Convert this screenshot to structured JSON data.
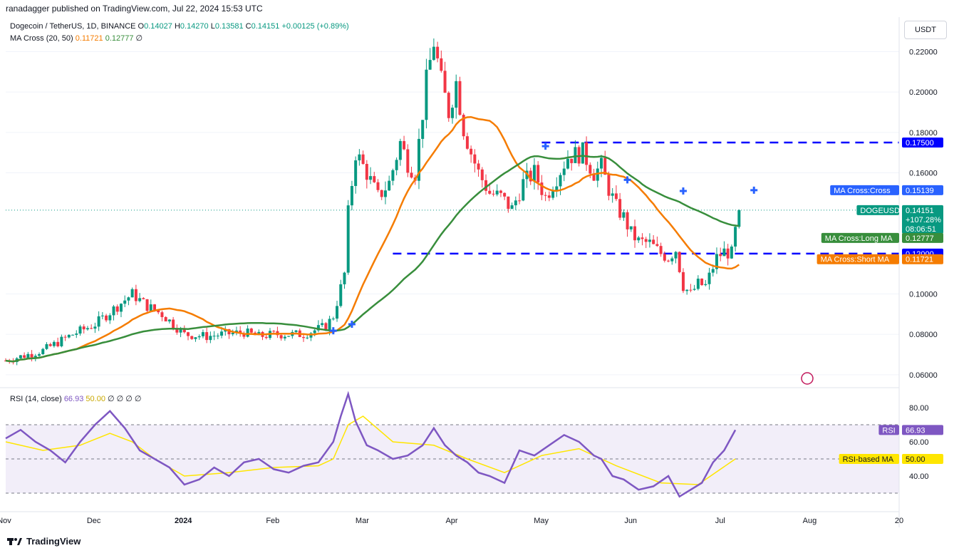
{
  "header": {
    "publisher": "ranadagger published on TradingView.com, Jul 22, 2024 15:53 UTC",
    "symbol": "Dogecoin / TetherUS, 1D, BINANCE",
    "o_label": "O",
    "o": "0.14027",
    "h_label": "H",
    "h": "0.14270",
    "l_label": "L",
    "l": "0.13581",
    "c_label": "C",
    "c": "0.14151",
    "change": "+0.00125 (+0.89%)",
    "ma_title": "MA Cross (20, 50)",
    "ma_short": "0.11721",
    "ma_long": "0.12777",
    "ma_extra": "∅",
    "currency": "USDT"
  },
  "rsi_legend": {
    "title": "RSI (14, close)",
    "rsi": "66.93",
    "ma": "50.00",
    "extras": "∅ ∅ ∅ ∅"
  },
  "footer": {
    "logo_text": "TradingView"
  },
  "colors": {
    "up": "#089981",
    "down": "#f23645",
    "short_ma": "#f57c00",
    "long_ma": "#388e3c",
    "level": "#0000ff",
    "rsi": "#7e57c2",
    "rsi_ma": "#ffe600"
  },
  "chart_data": {
    "type": "candlestick",
    "x_ticks": [
      "Nov",
      "Dec",
      "2024",
      "Feb",
      "Mar",
      "Apr",
      "May",
      "Jun",
      "Jul",
      "Aug",
      "20"
    ],
    "y_ticks": [
      "0.22000",
      "0.20000",
      "0.18000",
      "0.16000",
      "0.10000",
      "0.08000",
      "0.06000"
    ],
    "ylim": [
      0.055,
      0.235
    ],
    "horizontal_levels": [
      0.175,
      0.12
    ],
    "price_labels": [
      {
        "text": "0.17500",
        "value": 0.175,
        "color": "#0000ff"
      },
      {
        "text": "MA Cross:Cross",
        "value": 0.15139,
        "color": "#2962ff",
        "is_name": true
      },
      {
        "text": "0.15139",
        "value": 0.15139,
        "color": "#2962ff"
      },
      {
        "text": "DOGEUSDT",
        "value": 0.14151,
        "color": "#089981",
        "is_name": true
      },
      {
        "text": "0.14151",
        "value": 0.14151,
        "color": "#089981",
        "extra": [
          "+107.28%",
          "08:06:51"
        ]
      },
      {
        "text": "MA Cross:Long MA",
        "value": 0.12777,
        "color": "#388e3c",
        "is_name": true
      },
      {
        "text": "0.12777",
        "value": 0.12777,
        "color": "#388e3c"
      },
      {
        "text": "0.12000",
        "value": 0.12,
        "color": "#0000ff"
      },
      {
        "text": "MA Cross:Short MA",
        "value": 0.11721,
        "color": "#f57c00",
        "is_name": true
      },
      {
        "text": "0.11721",
        "value": 0.11721,
        "color": "#f57c00"
      }
    ],
    "price_path": [
      [
        0,
        0.067
      ],
      [
        10,
        0.072
      ],
      [
        18,
        0.08
      ],
      [
        24,
        0.085
      ],
      [
        30,
        0.094
      ],
      [
        34,
        0.1
      ],
      [
        38,
        0.094
      ],
      [
        42,
        0.09
      ],
      [
        48,
        0.08
      ],
      [
        54,
        0.079
      ],
      [
        58,
        0.08
      ],
      [
        64,
        0.081
      ],
      [
        68,
        0.079
      ],
      [
        72,
        0.08
      ],
      [
        80,
        0.08
      ],
      [
        86,
        0.084
      ],
      [
        88,
        0.089
      ],
      [
        91,
        0.11
      ],
      [
        92,
        0.14
      ],
      [
        94,
        0.17
      ],
      [
        97,
        0.16
      ],
      [
        100,
        0.148
      ],
      [
        103,
        0.155
      ],
      [
        106,
        0.175
      ],
      [
        108,
        0.165
      ],
      [
        110,
        0.16
      ],
      [
        113,
        0.205
      ],
      [
        115,
        0.225
      ],
      [
        117,
        0.205
      ],
      [
        119,
        0.19
      ],
      [
        121,
        0.205
      ],
      [
        123,
        0.182
      ],
      [
        125,
        0.17
      ],
      [
        127,
        0.16
      ],
      [
        130,
        0.15
      ],
      [
        133,
        0.148
      ],
      [
        136,
        0.142
      ],
      [
        139,
        0.155
      ],
      [
        142,
        0.16
      ],
      [
        145,
        0.148
      ],
      [
        148,
        0.158
      ],
      [
        151,
        0.168
      ],
      [
        155,
        0.17
      ],
      [
        158,
        0.16
      ],
      [
        160,
        0.163
      ],
      [
        162,
        0.152
      ],
      [
        164,
        0.143
      ],
      [
        166,
        0.138
      ],
      [
        168,
        0.13
      ],
      [
        170,
        0.126
      ],
      [
        173,
        0.125
      ],
      [
        176,
        0.12
      ],
      [
        178,
        0.118
      ],
      [
        180,
        0.122
      ],
      [
        182,
        0.104
      ],
      [
        184,
        0.1
      ],
      [
        186,
        0.105
      ],
      [
        188,
        0.104
      ],
      [
        191,
        0.118
      ],
      [
        193,
        0.121
      ],
      [
        195,
        0.12
      ],
      [
        196,
        0.131
      ],
      [
        197,
        0.1415
      ]
    ],
    "cross_markers": [
      [
        88,
        0.0818
      ],
      [
        93,
        0.085
      ],
      [
        145,
        0.1732
      ],
      [
        167,
        0.1565
      ],
      [
        182,
        0.151
      ],
      [
        201,
        0.1514
      ]
    ],
    "rsi": {
      "ylim": [
        20,
        90
      ],
      "y_ticks": [
        "80.00",
        "60.00",
        "40.00"
      ],
      "band": [
        30,
        70
      ],
      "midline": 50,
      "labels": [
        {
          "text": "RSI",
          "value": 66.93,
          "color": "#7e57c2",
          "is_name": true
        },
        {
          "text": "66.93",
          "value": 66.93,
          "color": "#7e57c2"
        },
        {
          "text": "RSI-based MA",
          "value": 50,
          "color": "#ffe600",
          "is_name": true
        },
        {
          "text": "50.00",
          "value": 50,
          "color": "#ffe600"
        }
      ],
      "rsi_path": [
        [
          0,
          62
        ],
        [
          4,
          67
        ],
        [
          8,
          60
        ],
        [
          12,
          55
        ],
        [
          16,
          48
        ],
        [
          20,
          60
        ],
        [
          24,
          70
        ],
        [
          28,
          78
        ],
        [
          32,
          68
        ],
        [
          36,
          55
        ],
        [
          40,
          50
        ],
        [
          44,
          45
        ],
        [
          48,
          35
        ],
        [
          52,
          38
        ],
        [
          56,
          45
        ],
        [
          60,
          40
        ],
        [
          64,
          48
        ],
        [
          68,
          50
        ],
        [
          72,
          44
        ],
        [
          76,
          42
        ],
        [
          80,
          46
        ],
        [
          84,
          48
        ],
        [
          88,
          60
        ],
        [
          90,
          75
        ],
        [
          92,
          88
        ],
        [
          94,
          72
        ],
        [
          97,
          58
        ],
        [
          100,
          55
        ],
        [
          104,
          50
        ],
        [
          108,
          52
        ],
        [
          112,
          58
        ],
        [
          115,
          68
        ],
        [
          118,
          58
        ],
        [
          121,
          52
        ],
        [
          124,
          48
        ],
        [
          127,
          42
        ],
        [
          130,
          40
        ],
        [
          134,
          36
        ],
        [
          138,
          55
        ],
        [
          142,
          52
        ],
        [
          146,
          58
        ],
        [
          150,
          64
        ],
        [
          154,
          60
        ],
        [
          158,
          52
        ],
        [
          160,
          50
        ],
        [
          163,
          40
        ],
        [
          166,
          38
        ],
        [
          170,
          32
        ],
        [
          174,
          34
        ],
        [
          178,
          40
        ],
        [
          181,
          28
        ],
        [
          184,
          32
        ],
        [
          187,
          36
        ],
        [
          190,
          48
        ],
        [
          193,
          55
        ],
        [
          196,
          66.93
        ]
      ],
      "ma_path": [
        [
          0,
          60
        ],
        [
          10,
          55
        ],
        [
          20,
          58
        ],
        [
          28,
          65
        ],
        [
          34,
          60
        ],
        [
          40,
          50
        ],
        [
          48,
          40
        ],
        [
          60,
          42
        ],
        [
          72,
          45
        ],
        [
          84,
          46
        ],
        [
          88,
          50
        ],
        [
          92,
          70
        ],
        [
          96,
          75
        ],
        [
          104,
          60
        ],
        [
          115,
          58
        ],
        [
          124,
          50
        ],
        [
          134,
          42
        ],
        [
          144,
          52
        ],
        [
          154,
          56
        ],
        [
          164,
          46
        ],
        [
          176,
          36
        ],
        [
          186,
          35
        ],
        [
          196,
          50
        ]
      ]
    }
  }
}
